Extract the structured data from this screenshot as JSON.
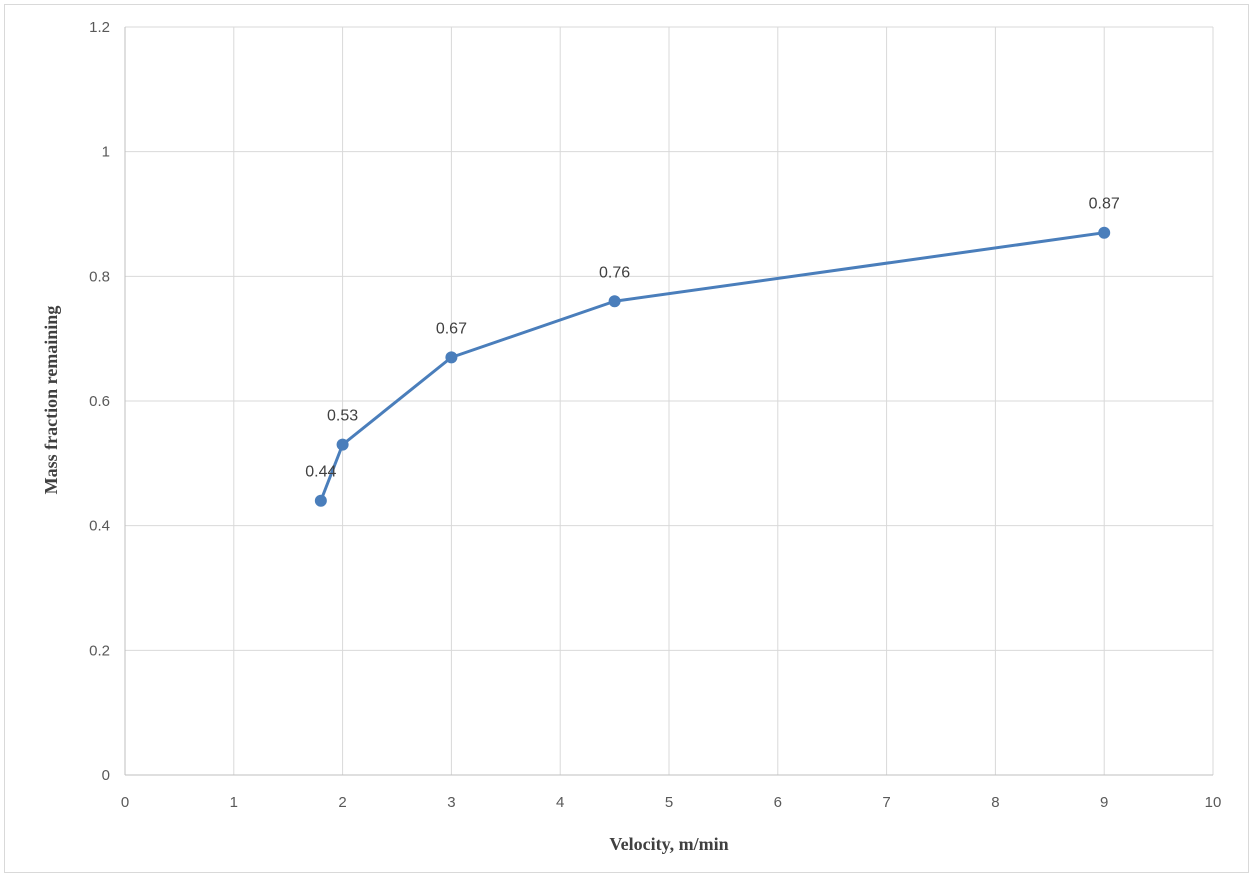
{
  "chart_data": {
    "type": "line",
    "title": "",
    "xlabel": "Velocity, m/min",
    "ylabel": "Mass fraction remaining",
    "xlim": [
      0,
      10
    ],
    "ylim": [
      0,
      1.2
    ],
    "x_ticks": [
      "0",
      "1",
      "2",
      "3",
      "4",
      "5",
      "6",
      "7",
      "8",
      "9",
      "10"
    ],
    "y_ticks": [
      "0",
      "0.2",
      "0.4",
      "0.6",
      "0.8",
      "1",
      "1.2"
    ],
    "grid": true,
    "legend": "none",
    "series": [
      {
        "color": "#4a7ebb",
        "x": [
          1.8,
          2,
          3,
          4.5,
          9
        ],
        "y": [
          0.44,
          0.53,
          0.67,
          0.76,
          0.87
        ],
        "labels": [
          "0.44",
          "0.53",
          "0.67",
          "0.76",
          "0.87"
        ]
      }
    ]
  }
}
